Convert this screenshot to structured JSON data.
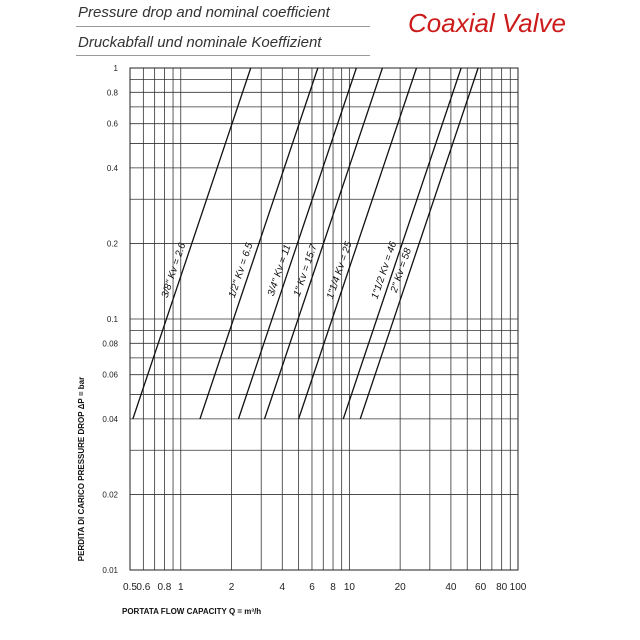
{
  "header": {
    "title_en": "Pressure drop and nominal coefficient",
    "title_de": "Druckabfall und nominale Koeffizient",
    "brand": "Coaxial Valve",
    "brand_color": "#cc1b1b"
  },
  "chart_data": {
    "type": "line",
    "x_scale": "log",
    "y_scale": "log",
    "xlim": [
      0.5,
      100
    ],
    "ylim": [
      0.01,
      1
    ],
    "grid": true,
    "x_ticks": [
      0.5,
      0.6,
      0.8,
      1,
      2,
      4,
      6,
      8,
      10,
      20,
      40,
      60,
      80,
      100
    ],
    "x_tick_labels": [
      "0.5",
      "0.6",
      "0.8",
      "1",
      "2",
      "4",
      "6",
      "8",
      "10",
      "20",
      "40",
      "60",
      "80",
      "100"
    ],
    "y_ticks": [
      0.01,
      0.02,
      0.04,
      0.06,
      0.08,
      0.1,
      0.2,
      0.4,
      0.6,
      0.8,
      1
    ],
    "y_tick_labels": [
      "0.01",
      "0.02",
      "0.04",
      "0.06",
      "0.08",
      "0.1",
      "0.2",
      "0.4",
      "0.6",
      "0.8",
      "1"
    ],
    "xlabel": "PORTATA  FLOW CAPACITY  Q = m³/h",
    "ylabel": "PERDITA DI CARICO  PRESSURE DROP  ΔP = bar",
    "series": [
      {
        "name": "3/8\"  Kv = 2.6",
        "kv": 2.6,
        "x": [
          0.52,
          2.6
        ],
        "y": [
          0.04,
          1
        ]
      },
      {
        "name": "1/2\"  Kv = 6.5",
        "kv": 6.5,
        "x": [
          1.3,
          6.5
        ],
        "y": [
          0.04,
          1
        ]
      },
      {
        "name": "3/4\"  Kv = 11",
        "kv": 11,
        "x": [
          2.2,
          11
        ],
        "y": [
          0.04,
          1
        ]
      },
      {
        "name": "1\"  Kv = 15.7",
        "kv": 15.7,
        "x": [
          3.14,
          15.7
        ],
        "y": [
          0.04,
          1
        ]
      },
      {
        "name": "1\"1/4  Kv = 25",
        "kv": 25,
        "x": [
          5.0,
          25
        ],
        "y": [
          0.04,
          1
        ]
      },
      {
        "name": "1\"1/2  Kv = 46",
        "kv": 46,
        "x": [
          9.2,
          46
        ],
        "y": [
          0.04,
          1
        ]
      },
      {
        "name": "2\"  Kv = 58",
        "kv": 58,
        "x": [
          11.6,
          58
        ],
        "y": [
          0.04,
          1
        ]
      }
    ]
  }
}
